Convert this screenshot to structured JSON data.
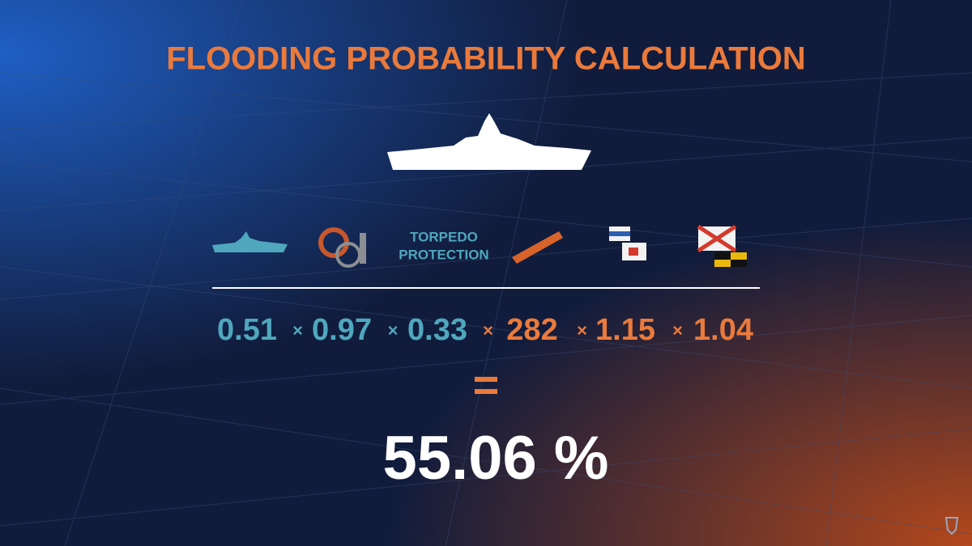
{
  "title": "FLOODING PROBABILITY CALCULATION",
  "icon_label": [
    "TORPEDO",
    "PROTECTION"
  ],
  "factors": [
    {
      "value": 0.51,
      "color": "#4fa7bd"
    },
    {
      "value": 0.97,
      "color": "#4fa7bd"
    },
    {
      "value": 0.33,
      "color": "#4fa7bd"
    },
    {
      "value": 282,
      "color": "#ea7a3c"
    },
    {
      "value": 1.15,
      "color": "#ea7a3c"
    },
    {
      "value": 1.04,
      "color": "#ea7a3c"
    }
  ],
  "operator": "×",
  "equals": "=",
  "result": "55.06 %"
}
